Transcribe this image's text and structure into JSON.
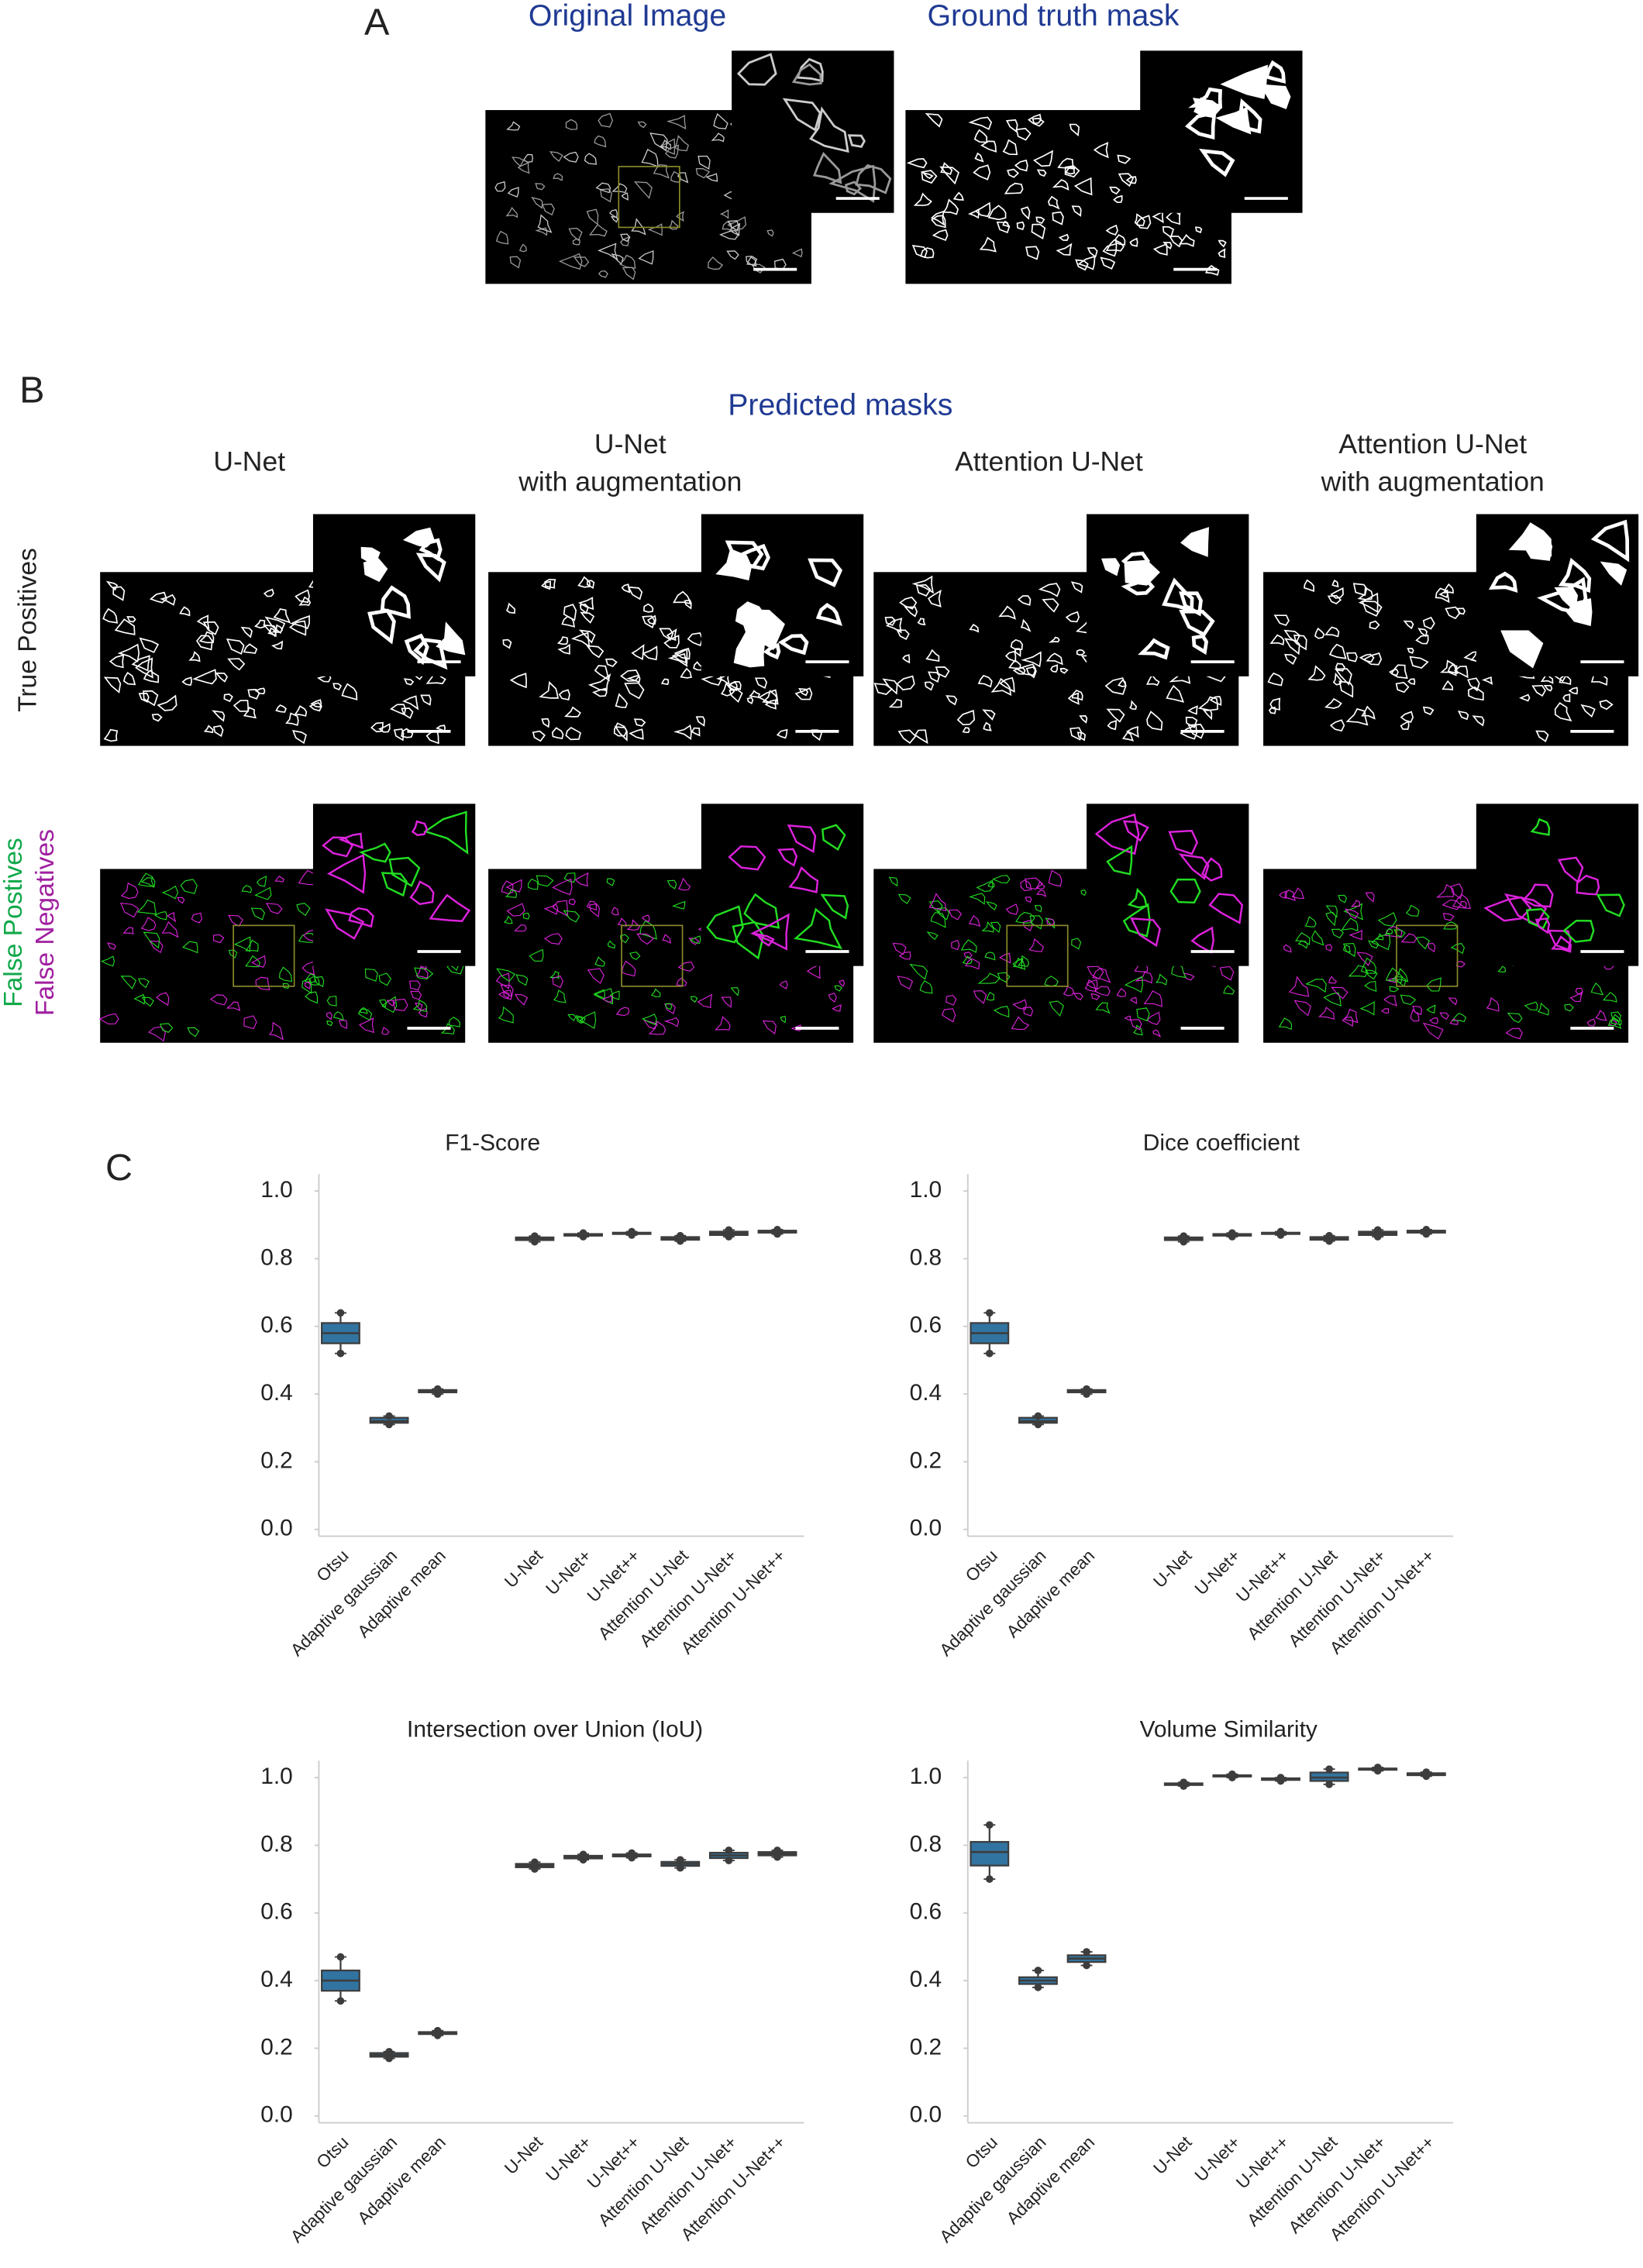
{
  "panel_labels": [
    "A",
    "B",
    "C"
  ],
  "panel_a": {
    "titles": [
      "Original Image",
      "Ground truth mask"
    ]
  },
  "panel_b": {
    "title": "Predicted masks",
    "columns": [
      [
        "U-Net"
      ],
      [
        "U-Net",
        "with augmentation"
      ],
      [
        "Attention U-Net"
      ],
      [
        "Attention U-Net",
        "with augmentation"
      ]
    ],
    "rows": [
      "True Positives",
      "False Postives",
      "False Negatives"
    ]
  },
  "chart_data": [
    {
      "type": "box",
      "title": "F1-Score",
      "color": "#3274a1",
      "categories": [
        "Otsu",
        "Adaptive gaussian",
        "Adaptive mean",
        null,
        "U-Net",
        "U-Net+",
        "U-Net++",
        "Attention U-Net",
        "Attention U-Net+",
        "Attention U-Net++"
      ],
      "boxes": [
        {
          "min": 0.52,
          "q1": 0.55,
          "median": 0.58,
          "q3": 0.61,
          "max": 0.64
        },
        {
          "min": 0.31,
          "q1": 0.315,
          "median": 0.32,
          "q3": 0.33,
          "max": 0.335
        },
        {
          "min": 0.4,
          "q1": 0.405,
          "median": 0.41,
          "q3": 0.412,
          "max": 0.415
        },
        null,
        {
          "min": 0.85,
          "q1": 0.855,
          "median": 0.86,
          "q3": 0.863,
          "max": 0.867
        },
        {
          "min": 0.865,
          "q1": 0.868,
          "median": 0.87,
          "q3": 0.873,
          "max": 0.876
        },
        {
          "min": 0.87,
          "q1": 0.873,
          "median": 0.875,
          "q3": 0.877,
          "max": 0.88
        },
        {
          "min": 0.852,
          "q1": 0.856,
          "median": 0.86,
          "q3": 0.864,
          "max": 0.868
        },
        {
          "min": 0.865,
          "q1": 0.87,
          "median": 0.875,
          "q3": 0.88,
          "max": 0.885
        },
        {
          "min": 0.873,
          "q1": 0.877,
          "median": 0.88,
          "q3": 0.883,
          "max": 0.886
        }
      ],
      "ylim": [
        -0.02,
        1.05
      ],
      "yticks": [
        {
          "value": 0,
          "label": "0.0"
        },
        {
          "value": 0.2,
          "label": "0.2"
        },
        {
          "value": 0.4,
          "label": "0.4"
        },
        {
          "value": 0.6,
          "label": "0.6"
        },
        {
          "value": 0.8,
          "label": "0.8"
        },
        {
          "value": 1,
          "label": "1.0"
        }
      ]
    },
    {
      "type": "box",
      "title": "Dice coefficient",
      "color": "#3274a1",
      "categories": [
        "Otsu",
        "Adaptive gaussian",
        "Adaptive mean",
        null,
        "U-Net",
        "U-Net+",
        "U-Net++",
        "Attention U-Net",
        "Attention U-Net+",
        "Attention U-Net++"
      ],
      "boxes": [
        {
          "min": 0.52,
          "q1": 0.55,
          "median": 0.58,
          "q3": 0.61,
          "max": 0.64
        },
        {
          "min": 0.31,
          "q1": 0.315,
          "median": 0.32,
          "q3": 0.33,
          "max": 0.335
        },
        {
          "min": 0.4,
          "q1": 0.405,
          "median": 0.41,
          "q3": 0.412,
          "max": 0.415
        },
        null,
        {
          "min": 0.85,
          "q1": 0.855,
          "median": 0.86,
          "q3": 0.863,
          "max": 0.867
        },
        {
          "min": 0.865,
          "q1": 0.868,
          "median": 0.87,
          "q3": 0.873,
          "max": 0.876
        },
        {
          "min": 0.87,
          "q1": 0.873,
          "median": 0.875,
          "q3": 0.877,
          "max": 0.88
        },
        {
          "min": 0.852,
          "q1": 0.856,
          "median": 0.86,
          "q3": 0.864,
          "max": 0.868
        },
        {
          "min": 0.865,
          "q1": 0.87,
          "median": 0.875,
          "q3": 0.88,
          "max": 0.885
        },
        {
          "min": 0.873,
          "q1": 0.877,
          "median": 0.88,
          "q3": 0.883,
          "max": 0.886
        }
      ],
      "ylim": [
        -0.02,
        1.05
      ],
      "yticks": [
        {
          "value": 0,
          "label": "0.0"
        },
        {
          "value": 0.2,
          "label": "0.2"
        },
        {
          "value": 0.4,
          "label": "0.4"
        },
        {
          "value": 0.6,
          "label": "0.6"
        },
        {
          "value": 0.8,
          "label": "0.8"
        },
        {
          "value": 1,
          "label": "1.0"
        }
      ]
    },
    {
      "type": "box",
      "title": "Intersection over Union (IoU)",
      "color": "#3274a1",
      "categories": [
        "Otsu",
        "Adaptive gaussian",
        "Adaptive mean",
        null,
        "U-Net",
        "U-Net+",
        "U-Net++",
        "Attention U-Net",
        "Attention U-Net+",
        "Attention U-Net++"
      ],
      "boxes": [
        {
          "min": 0.34,
          "q1": 0.37,
          "median": 0.4,
          "q3": 0.43,
          "max": 0.47
        },
        {
          "min": 0.17,
          "q1": 0.175,
          "median": 0.18,
          "q3": 0.186,
          "max": 0.19
        },
        {
          "min": 0.238,
          "q1": 0.242,
          "median": 0.245,
          "q3": 0.248,
          "max": 0.252
        },
        null,
        {
          "min": 0.73,
          "q1": 0.735,
          "median": 0.74,
          "q3": 0.745,
          "max": 0.75
        },
        {
          "min": 0.757,
          "q1": 0.761,
          "median": 0.765,
          "q3": 0.769,
          "max": 0.773
        },
        {
          "min": 0.763,
          "q1": 0.767,
          "median": 0.77,
          "q3": 0.773,
          "max": 0.777
        },
        {
          "min": 0.733,
          "q1": 0.739,
          "median": 0.745,
          "q3": 0.751,
          "max": 0.757
        },
        {
          "min": 0.755,
          "q1": 0.762,
          "median": 0.77,
          "q3": 0.778,
          "max": 0.785
        },
        {
          "min": 0.765,
          "q1": 0.77,
          "median": 0.775,
          "q3": 0.78,
          "max": 0.785
        }
      ],
      "ylim": [
        -0.02,
        1.05
      ],
      "yticks": [
        {
          "value": 0,
          "label": "0.0"
        },
        {
          "value": 0.2,
          "label": "0.2"
        },
        {
          "value": 0.4,
          "label": "0.4"
        },
        {
          "value": 0.6,
          "label": "0.6"
        },
        {
          "value": 0.8,
          "label": "0.8"
        },
        {
          "value": 1,
          "label": "1.0"
        }
      ]
    },
    {
      "type": "box",
      "title": "Volume Similarity",
      "color": "#3274a1",
      "categories": [
        "Otsu",
        "Adaptive gaussian",
        "Adaptive mean",
        null,
        "U-Net",
        "U-Net+",
        "U-Net++",
        "Attention U-Net",
        "Attention U-Net+",
        "Attention U-Net++"
      ],
      "boxes": [
        {
          "min": 0.7,
          "q1": 0.74,
          "median": 0.78,
          "q3": 0.81,
          "max": 0.86
        },
        {
          "min": 0.38,
          "q1": 0.39,
          "median": 0.4,
          "q3": 0.41,
          "max": 0.43
        },
        {
          "min": 0.445,
          "q1": 0.455,
          "median": 0.465,
          "q3": 0.475,
          "max": 0.485
        },
        null,
        {
          "min": 0.975,
          "q1": 0.978,
          "median": 0.98,
          "q3": 0.983,
          "max": 0.986
        },
        {
          "min": 1.0,
          "q1": 1.003,
          "median": 1.005,
          "q3": 1.007,
          "max": 1.01
        },
        {
          "min": 0.99,
          "q1": 0.993,
          "median": 0.995,
          "q3": 0.998,
          "max": 1.0
        },
        {
          "min": 0.98,
          "q1": 0.99,
          "median": 1.0,
          "q3": 1.015,
          "max": 1.025
        },
        {
          "min": 1.02,
          "q1": 1.023,
          "median": 1.025,
          "q3": 1.027,
          "max": 1.03
        },
        {
          "min": 1.004,
          "q1": 1.007,
          "median": 1.01,
          "q3": 1.013,
          "max": 1.016
        }
      ],
      "ylim": [
        -0.02,
        1.05
      ],
      "yticks": [
        {
          "value": 0,
          "label": "0.0"
        },
        {
          "value": 0.2,
          "label": "0.2"
        },
        {
          "value": 0.4,
          "label": "0.4"
        },
        {
          "value": 0.6,
          "label": "0.6"
        },
        {
          "value": 0.8,
          "label": "0.8"
        },
        {
          "value": 1,
          "label": "1.0"
        }
      ]
    }
  ]
}
